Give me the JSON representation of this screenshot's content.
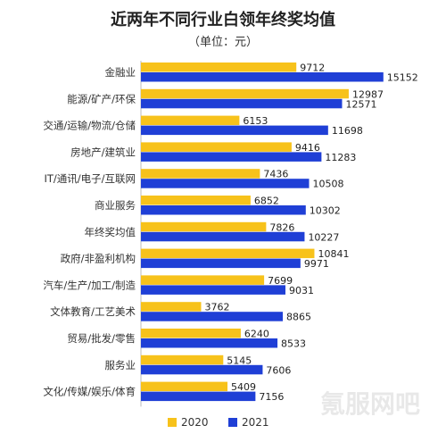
{
  "title": "近两年不同行业白领年终奖均值",
  "subtitle": "（单位：元）",
  "colors": {
    "series_2020": "#f7c21b",
    "series_2021": "#1f3fd6",
    "text": "#333333"
  },
  "watermark_text": "氪服网吧",
  "chart_data": {
    "type": "bar",
    "orientation": "horizontal",
    "title": "近两年不同行业白领年终奖均值",
    "subtitle": "（单位：元）",
    "categories": [
      "金融业",
      "能源/矿产/环保",
      "交通/运输/物流/仓储",
      "房地产/建筑业",
      "IT/通讯/电子/互联网",
      "商业服务",
      "年终奖均值",
      "政府/非盈利机构",
      "汽车/生产/加工/制造",
      "文体教育/工艺美术",
      "贸易/批发/零售",
      "服务业",
      "文化/传媒/娱乐/体育"
    ],
    "series": [
      {
        "name": "2020",
        "values": [
          9712,
          12987,
          6153,
          9416,
          7436,
          6852,
          7826,
          10841,
          7699,
          3762,
          6240,
          5145,
          5409
        ]
      },
      {
        "name": "2021",
        "values": [
          15152,
          12571,
          11698,
          11283,
          10508,
          10302,
          10227,
          9971,
          9031,
          8865,
          8533,
          7606,
          7156
        ]
      }
    ],
    "xlim": [
      0,
      16000
    ],
    "grid": false,
    "legend_position": "bottom"
  }
}
